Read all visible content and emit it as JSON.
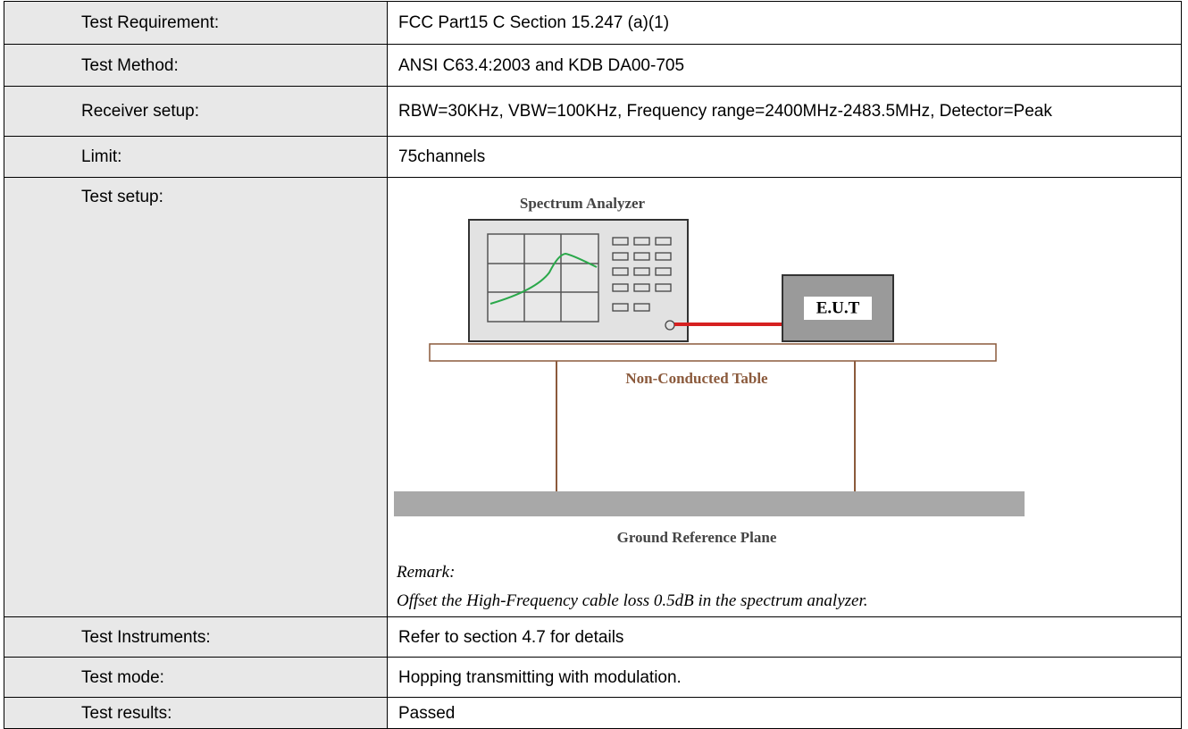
{
  "table": {
    "rows": [
      {
        "label": "Test Requirement:",
        "value": "FCC Part15 C Section 15.247 (a)(1)"
      },
      {
        "label": "Test Method:",
        "value": "ANSI C63.4:2003 and KDB DA00-705"
      },
      {
        "label": "Receiver setup:",
        "value": "RBW=30KHz, VBW=100KHz, Frequency range=2400MHz-2483.5MHz, Detector=Peak"
      },
      {
        "label": "Limit:",
        "value": "75channels"
      },
      {
        "label": "Test setup:"
      },
      {
        "label": "Test Instruments:",
        "value": "Refer to section 4.7 for details"
      },
      {
        "label": "Test mode:",
        "value": "Hopping transmitting with modulation."
      },
      {
        "label": "Test results:",
        "value": "Passed"
      }
    ]
  },
  "setup": {
    "analyzer": "Spectrum Analyzer",
    "eut": "E.U.T",
    "table": "Non-Conducted Table",
    "ground": "Ground Reference Plane",
    "remark_title": "Remark:",
    "remark": "Offset the High-Frequency cable loss 0.5dB in the spectrum analyzer."
  }
}
